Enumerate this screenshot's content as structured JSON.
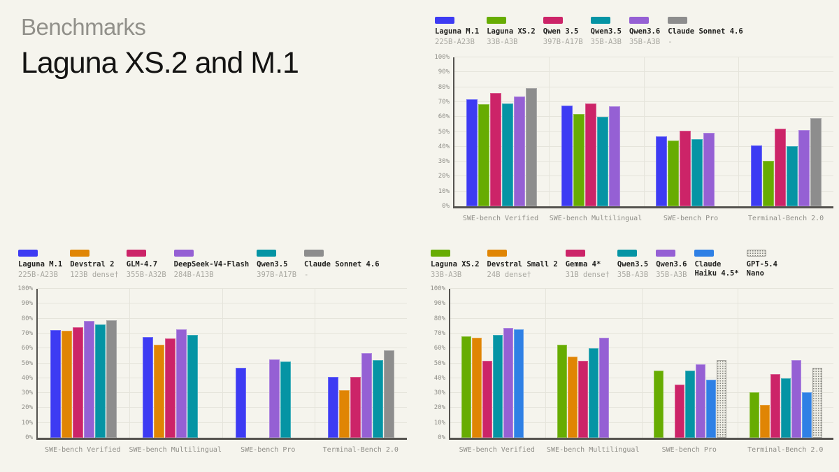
{
  "page": {
    "eyebrow": "Benchmarks",
    "title": "Laguna XS.2 and M.1"
  },
  "colors": {
    "background": "#f5f4ed",
    "title_text": "#141413",
    "eyebrow_text": "#91908a",
    "axis": "#55534f",
    "gridline": "#e5e4db",
    "tick_text": "#8f8e88",
    "legend_name_text": "#21211f",
    "legend_sublabel_text": "#a9a8a1"
  },
  "chart_data": [
    {
      "type": "bar",
      "position": "top-right",
      "title": "",
      "xlabel": "",
      "ylabel": "",
      "ylim": [
        0,
        100
      ],
      "grid": true,
      "legend_position": "top",
      "yticks": [
        "0%",
        "10%",
        "20%",
        "30%",
        "40%",
        "50%",
        "60%",
        "70%",
        "80%",
        "90%",
        "100%"
      ],
      "categories": [
        "SWE-bench Verified",
        "SWE-bench Multilingual",
        "SWE-bench Pro",
        "Terminal-Bench 2.0"
      ],
      "series": [
        {
          "name": "Laguna M.1",
          "sublabel": "225B-A23B",
          "color": "#3d3bf3",
          "values": [
            72,
            67.5,
            47,
            41
          ]
        },
        {
          "name": "Laguna XS.2",
          "sublabel": "33B-A3B",
          "color": "#67ac02",
          "values": [
            68.5,
            62,
            44,
            30.5
          ]
        },
        {
          "name": "Qwen 3.5",
          "sublabel": "397B-A17B",
          "color": "#cc2468",
          "values": [
            76,
            69,
            50.5,
            52
          ]
        },
        {
          "name": "Qwen3.5",
          "sublabel": "35B-A3B",
          "color": "#0594a4",
          "values": [
            69,
            60,
            45,
            40.5
          ]
        },
        {
          "name": "Qwen3.6",
          "sublabel": "35B-A3B",
          "color": "#9560d4",
          "values": [
            73.5,
            67,
            49.5,
            51
          ]
        },
        {
          "name": "Claude Sonnet 4.6",
          "sublabel": "-",
          "color": "#8d8d8d",
          "values": [
            79.5,
            null,
            null,
            59
          ]
        }
      ]
    },
    {
      "type": "bar",
      "position": "bottom-left",
      "title": "",
      "xlabel": "",
      "ylabel": "",
      "ylim": [
        0,
        100
      ],
      "grid": true,
      "legend_position": "top",
      "yticks": [
        "0%",
        "10%",
        "20%",
        "30%",
        "40%",
        "50%",
        "60%",
        "70%",
        "80%",
        "90%",
        "100%"
      ],
      "categories": [
        "SWE-bench Verified",
        "SWE-bench Multilingual",
        "SWE-bench Pro",
        "Terminal-Bench 2.0"
      ],
      "series": [
        {
          "name": "Laguna M.1",
          "sublabel": "225B-A23B",
          "color": "#3d3bf3",
          "values": [
            72.5,
            67.5,
            47,
            41
          ]
        },
        {
          "name": "Devstral 2",
          "sublabel": "123B dense†",
          "color": "#e08504",
          "values": [
            72,
            62.5,
            null,
            32
          ]
        },
        {
          "name": "GLM-4.7",
          "sublabel": "355B-A32B",
          "color": "#cc2468",
          "values": [
            74,
            66.5,
            null,
            41
          ]
        },
        {
          "name": "DeepSeek-V4-Flash",
          "sublabel": "284B-A13B",
          "color": "#9560d4",
          "values": [
            78.5,
            73,
            52.5,
            57
          ]
        },
        {
          "name": "Qwen3.5",
          "sublabel": "397B-A17B",
          "color": "#0594a4",
          "values": [
            76,
            69,
            51,
            52
          ]
        },
        {
          "name": "Claude Sonnet 4.6",
          "sublabel": "-",
          "color": "#8d8d8d",
          "values": [
            79,
            null,
            null,
            58.5
          ]
        }
      ]
    },
    {
      "type": "bar",
      "position": "bottom-right",
      "title": "",
      "xlabel": "",
      "ylabel": "",
      "ylim": [
        0,
        100
      ],
      "grid": true,
      "legend_position": "top",
      "yticks": [
        "0%",
        "10%",
        "20%",
        "30%",
        "40%",
        "50%",
        "60%",
        "70%",
        "80%",
        "90%",
        "100%"
      ],
      "categories": [
        "SWE-bench Verified",
        "SWE-bench Multilingual",
        "SWE-bench Pro",
        "Terminal-Bench 2.0"
      ],
      "series": [
        {
          "name": "Laguna XS.2",
          "sublabel": "33B-A3B",
          "color": "#67ac02",
          "values": [
            68,
            62.5,
            45,
            30.5
          ]
        },
        {
          "name": "Devstral Small 2",
          "sublabel": "24B dense†",
          "color": "#e08504",
          "values": [
            67,
            54.5,
            null,
            22
          ]
        },
        {
          "name": "Gemma 4*",
          "sublabel": "31B dense†",
          "color": "#cc2468",
          "values": [
            51.5,
            51.5,
            35.5,
            42.5
          ]
        },
        {
          "name": "Qwen3.5",
          "sublabel": "35B-A3B",
          "color": "#0594a4",
          "values": [
            69,
            60,
            45,
            40
          ]
        },
        {
          "name": "Qwen3.6",
          "sublabel": "35B-A3B",
          "color": "#9560d4",
          "values": [
            73.5,
            67,
            49.5,
            52
          ]
        },
        {
          "name": "Claude",
          "name2": "Haiku 4.5*",
          "sublabel": "",
          "color": "#2f80e5",
          "values": [
            73,
            null,
            39,
            30.5
          ]
        },
        {
          "name": "GPT-5.4",
          "name2": "Nano",
          "sublabel": "",
          "color": "#c9c8c0",
          "hatch": true,
          "values": [
            null,
            null,
            52,
            47
          ]
        }
      ]
    }
  ]
}
